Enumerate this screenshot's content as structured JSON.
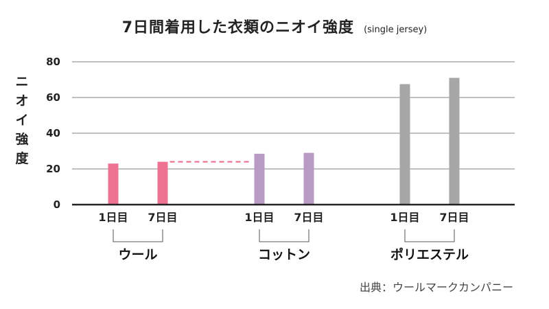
{
  "chart_data": {
    "type": "bar",
    "title": "7日間着用した衣類のニオイ強度",
    "subtitle": "(single jersey)",
    "ylabel": "ニオイ強度",
    "ylim": [
      0,
      80
    ],
    "yticks": [
      0,
      20,
      40,
      60,
      80
    ],
    "grid": true,
    "groups": [
      {
        "name": "ウール",
        "color": "#ee7393",
        "bars": [
          {
            "label": "1日目",
            "value": 23
          },
          {
            "label": "7日目",
            "value": 24
          }
        ]
      },
      {
        "name": "コットン",
        "color": "#b89ac4",
        "bars": [
          {
            "label": "1日目",
            "value": 28.5
          },
          {
            "label": "7日目",
            "value": 29
          }
        ]
      },
      {
        "name": "ポリエステル",
        "color": "#a6a6a6",
        "bars": [
          {
            "label": "1日目",
            "value": 67.5
          },
          {
            "label": "7日目",
            "value": 71
          }
        ]
      }
    ],
    "annotation": {
      "type": "dashed-line",
      "value": 24,
      "from_group": 0,
      "to_group": 1,
      "color": "#ee7393"
    },
    "source": "出典：ウールマークカンパニー"
  }
}
